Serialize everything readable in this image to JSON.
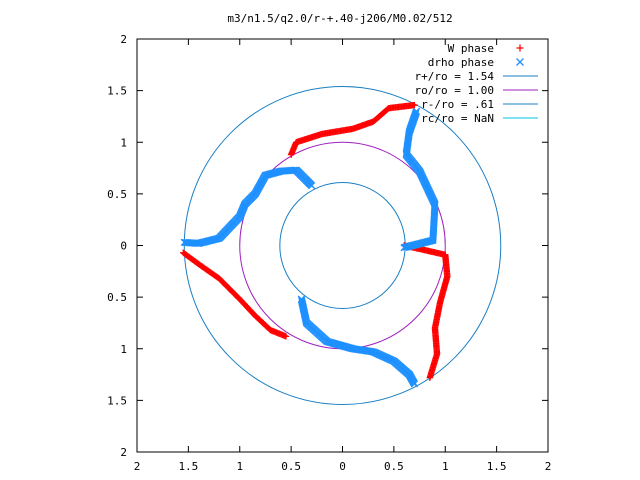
{
  "chart_data": {
    "type": "scatter",
    "title": "m3/n1.5/q2.0/r-+.40-j206/M0.02/512",
    "xlim": [
      -2,
      2
    ],
    "ylim": [
      -2,
      2
    ],
    "xticks": [
      -2,
      -1.5,
      -1,
      -0.5,
      0,
      0.5,
      1,
      1.5,
      2
    ],
    "xtick_labels": [
      "2",
      "1.5",
      "1",
      "0.5",
      "0",
      "0.5",
      "1",
      "1.5",
      "2"
    ],
    "yticks": [
      2,
      1.5,
      1,
      0.5,
      0,
      -0.5,
      -1,
      -1.5,
      -2
    ],
    "ytick_labels": [
      "2",
      "1.5",
      "1",
      "0.5",
      "0",
      "0.5",
      "1",
      "1.5",
      "2"
    ],
    "grid": false,
    "legend_position": "top-right",
    "colors": {
      "w_phase": "#ff0000",
      "drho_phase": "#1e90ff",
      "r_plus": "#1a7fc4",
      "r_o": "#a020c0",
      "r_minus": "#1a7fc4",
      "r_c": "#00c8e0"
    },
    "circles": [
      {
        "name": "r+/ro = 1.54",
        "radius": 1.54,
        "marker": "line"
      },
      {
        "name": "ro/ro = 1.00",
        "radius": 1.0,
        "marker": "line"
      },
      {
        "name": "r-/ro = .61",
        "radius": 0.61,
        "marker": "line"
      },
      {
        "name": "rc/ro = NaN",
        "radius": null,
        "marker": "line"
      }
    ],
    "series": [
      {
        "name": "W phase",
        "marker": "plus",
        "arms": [
          [
            [
              -1.55,
              -0.07
            ],
            [
              -1.4,
              -0.18
            ],
            [
              -1.2,
              -0.32
            ],
            [
              -1.0,
              -0.52
            ],
            [
              -0.85,
              -0.68
            ],
            [
              -0.7,
              -0.82
            ],
            [
              -0.55,
              -0.88
            ]
          ],
          [
            [
              -0.5,
              0.88
            ],
            [
              -0.45,
              1.0
            ],
            [
              -0.2,
              1.08
            ],
            [
              0.1,
              1.13
            ],
            [
              0.3,
              1.2
            ],
            [
              0.45,
              1.33
            ],
            [
              0.7,
              1.36
            ]
          ],
          [
            [
              0.6,
              0.0
            ],
            [
              0.78,
              -0.04
            ],
            [
              1.0,
              -0.09
            ],
            [
              1.02,
              -0.3
            ],
            [
              0.95,
              -0.55
            ],
            [
              0.9,
              -0.8
            ],
            [
              0.92,
              -1.05
            ],
            [
              0.85,
              -1.28
            ]
          ]
        ]
      },
      {
        "name": "drho phase",
        "marker": "cross",
        "arms": [
          [
            [
              -1.54,
              0.03
            ],
            [
              -1.4,
              0.02
            ],
            [
              -1.2,
              0.07
            ],
            [
              -1.0,
              0.28
            ],
            [
              -0.95,
              0.4
            ],
            [
              -0.85,
              0.5
            ],
            [
              -0.75,
              0.68
            ],
            [
              -0.6,
              0.72
            ],
            [
              -0.45,
              0.73
            ],
            [
              -0.3,
              0.58
            ]
          ],
          [
            [
              -0.4,
              -0.52
            ],
            [
              -0.35,
              -0.75
            ],
            [
              -0.15,
              -0.93
            ],
            [
              0.1,
              -1.0
            ],
            [
              0.3,
              -1.03
            ],
            [
              0.5,
              -1.12
            ],
            [
              0.65,
              -1.25
            ],
            [
              0.7,
              -1.34
            ]
          ],
          [
            [
              0.6,
              -0.02
            ],
            [
              0.88,
              0.05
            ],
            [
              0.9,
              0.4
            ],
            [
              0.75,
              0.72
            ],
            [
              0.62,
              0.88
            ],
            [
              0.65,
              1.1
            ],
            [
              0.72,
              1.3
            ]
          ]
        ]
      }
    ]
  }
}
